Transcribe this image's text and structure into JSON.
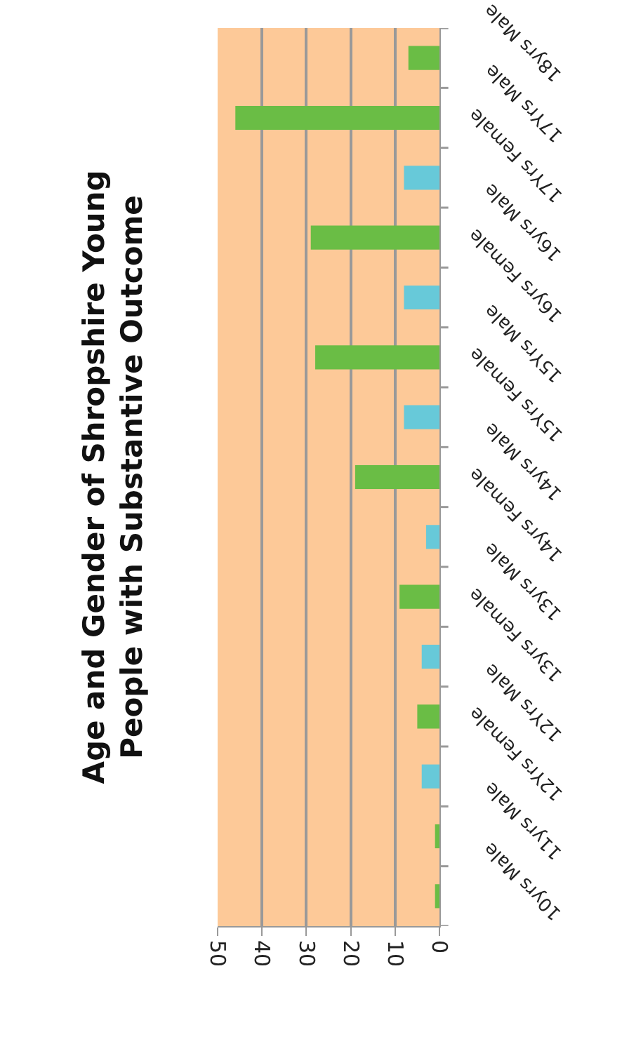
{
  "chart_data": {
    "type": "bar",
    "orientation": "horizontal",
    "title": "Age and Gender of Shropshire Young\nPeople with Substantive Outcome",
    "categories": [
      "18yrs Male",
      "17Yrs Male",
      "17Yrs Female",
      "16yrs Male",
      "16yrs Female",
      "15Yrs Male",
      "15Yrs Female",
      "14yrs Male",
      "14yrs Female",
      "13yrs Male",
      "13yrs Female",
      "12Yrs Male",
      "12Yrs Female",
      "11yrs Male",
      "10yrs Male"
    ],
    "values": [
      7,
      46,
      8,
      29,
      8,
      28,
      8,
      19,
      3,
      9,
      4,
      5,
      4,
      1,
      1
    ],
    "colors": [
      "#6abd45",
      "#6abd45",
      "#67c9d9",
      "#6abd45",
      "#67c9d9",
      "#6abd45",
      "#67c9d9",
      "#6abd45",
      "#67c9d9",
      "#6abd45",
      "#67c9d9",
      "#6abd45",
      "#67c9d9",
      "#6abd45",
      "#6abd45"
    ],
    "xlim": [
      50,
      0
    ],
    "xticks": [
      0,
      10,
      20,
      30,
      40,
      50
    ],
    "grid": "x"
  }
}
